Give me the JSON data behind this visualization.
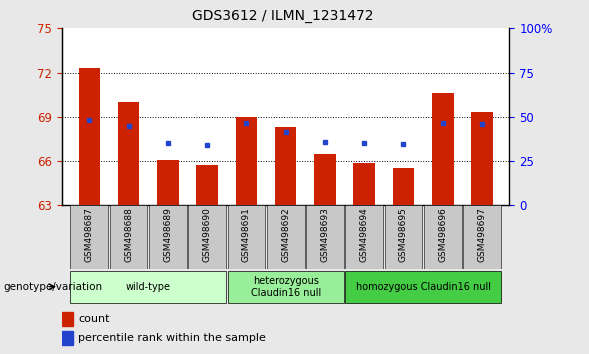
{
  "title": "GDS3612 / ILMN_1231472",
  "samples": [
    "GSM498687",
    "GSM498688",
    "GSM498689",
    "GSM498690",
    "GSM498691",
    "GSM498692",
    "GSM498693",
    "GSM498694",
    "GSM498695",
    "GSM498696",
    "GSM498697"
  ],
  "bar_heights": [
    72.3,
    70.0,
    66.1,
    65.7,
    69.0,
    68.3,
    66.5,
    65.9,
    65.5,
    70.6,
    69.3
  ],
  "blue_y": [
    68.8,
    68.4,
    67.2,
    67.1,
    68.6,
    68.0,
    67.3,
    67.2,
    67.15,
    68.6,
    68.5
  ],
  "bar_bottom": 63,
  "ylim_left": [
    63,
    75
  ],
  "ylim_right": [
    0,
    100
  ],
  "yticks_left": [
    63,
    66,
    69,
    72,
    75
  ],
  "yticks_right": [
    0,
    25,
    50,
    75,
    100
  ],
  "ytick_labels_right": [
    "0",
    "25",
    "50",
    "75",
    "100%"
  ],
  "bar_color": "#cc2200",
  "blue_color": "#2244cc",
  "group_data": [
    {
      "start": 0,
      "end": 3,
      "label": "wild-type",
      "color": "#ccffcc"
    },
    {
      "start": 4,
      "end": 6,
      "label": "heterozygous\nClaudin16 null",
      "color": "#99ee99"
    },
    {
      "start": 7,
      "end": 10,
      "label": "homozygous Claudin16 null",
      "color": "#44cc44"
    }
  ],
  "xlabel": "genotype/variation",
  "legend_count": "count",
  "legend_percentile": "percentile rank within the sample",
  "background_color": "#e8e8e8",
  "plot_bg": "#ffffff",
  "xtick_bg": "#c8c8c8",
  "bar_width": 0.55
}
